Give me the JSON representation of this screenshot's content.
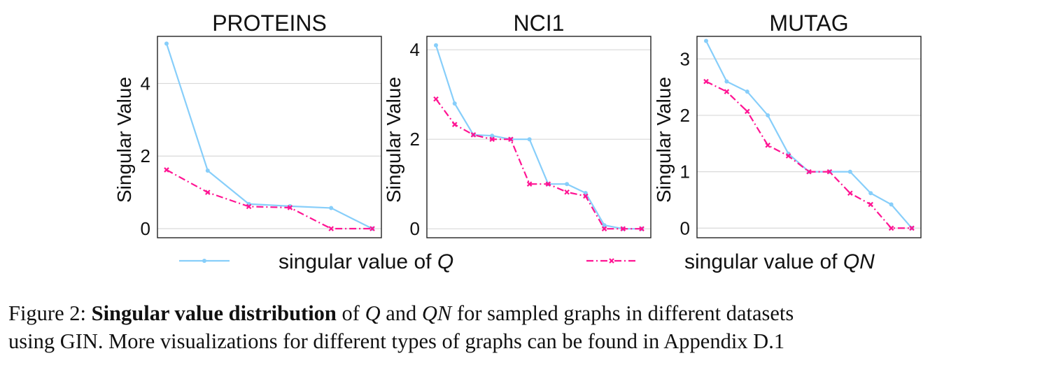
{
  "legend": {
    "q_label": "singular value of ",
    "q_symbol": "Q",
    "qn_label": "singular value of ",
    "qn_symbol": "QN"
  },
  "colors": {
    "q": "#87CEFA",
    "qn": "#FF1493",
    "grid": "#d9d9d9",
    "axis": "#222222"
  },
  "caption": {
    "prefix": "Figure 2: ",
    "bold": "Singular value distribution",
    "of": " of ",
    "q": "Q",
    "and": " and ",
    "qn": "QN",
    "rest1": " for sampled graphs in different datasets",
    "line2": "using GIN. More visualizations for different types of graphs can be found in Appendix D.1"
  },
  "chart_data": [
    {
      "type": "line",
      "title": "PROTEINS",
      "ylabel": "Singular Value",
      "ylim": [
        -0.25,
        5.3
      ],
      "yticks": [
        0,
        2,
        4
      ],
      "grid": "horizontal",
      "x": [
        0,
        1,
        2,
        3,
        4,
        5
      ],
      "series": [
        {
          "name": "singular value of Q",
          "values": [
            5.1,
            1.6,
            0.68,
            0.62,
            0.57,
            0.0
          ]
        },
        {
          "name": "singular value of QN",
          "values": [
            1.62,
            1.0,
            0.61,
            0.58,
            0.0,
            0.0
          ]
        }
      ]
    },
    {
      "type": "line",
      "title": "NCI1",
      "ylabel": "Singular Value",
      "ylim": [
        -0.2,
        4.3
      ],
      "yticks": [
        0,
        2,
        4
      ],
      "grid": "horizontal",
      "x": [
        0,
        1,
        2,
        3,
        4,
        5,
        6,
        7,
        8,
        9,
        10,
        11
      ],
      "series": [
        {
          "name": "singular value of Q",
          "values": [
            4.1,
            2.8,
            2.1,
            2.08,
            2.0,
            2.0,
            1.0,
            1.0,
            0.8,
            0.08,
            0.0,
            0.0
          ]
        },
        {
          "name": "singular value of QN",
          "values": [
            2.9,
            2.33,
            2.1,
            2.0,
            2.0,
            1.0,
            1.0,
            0.82,
            0.73,
            0.0,
            0.0,
            0.0
          ]
        }
      ]
    },
    {
      "type": "line",
      "title": "MUTAG",
      "ylabel": "Singular Value",
      "ylim": [
        -0.17,
        3.4
      ],
      "yticks": [
        0,
        1,
        2,
        3
      ],
      "grid": "horizontal",
      "x": [
        0,
        1,
        2,
        3,
        4,
        5,
        6,
        7,
        8,
        9,
        10
      ],
      "series": [
        {
          "name": "singular value of Q",
          "values": [
            3.32,
            2.6,
            2.42,
            2.0,
            1.32,
            1.0,
            1.0,
            1.0,
            0.62,
            0.42,
            0.0
          ]
        },
        {
          "name": "singular value of QN",
          "values": [
            2.6,
            2.42,
            2.07,
            1.47,
            1.28,
            1.0,
            1.0,
            0.62,
            0.42,
            0.0,
            0.0
          ]
        }
      ]
    }
  ]
}
